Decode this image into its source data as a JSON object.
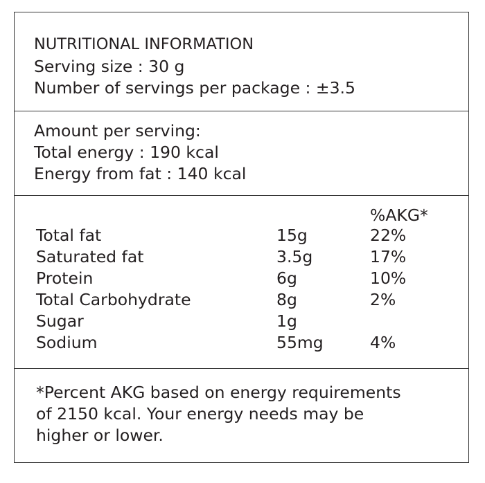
{
  "header": {
    "title": "NUTRITIONAL INFORMATION",
    "serving_size": "Serving size : 30 g",
    "servings_per_package": "Number of servings per package : ±3.5"
  },
  "energy": {
    "amount_per_serving": "Amount per serving:",
    "total_energy": "Total energy : 190 kcal",
    "energy_from_fat": "Energy from fat : 140 kcal"
  },
  "nutrients": {
    "percent_header": "%AKG*",
    "rows": [
      {
        "name": "Total fat",
        "amount": "15g",
        "percent": "22%"
      },
      {
        "name": "Saturated fat",
        "amount": "3.5g",
        "percent": "17%"
      },
      {
        "name": "Protein",
        "amount": "6g",
        "percent": "10%"
      },
      {
        "name": "Total Carbohydrate",
        "amount": "8g",
        "percent": "2%"
      },
      {
        "name": "Sugar",
        "amount": "1g",
        "percent": ""
      },
      {
        "name": "Sodium",
        "amount": "55mg",
        "percent": "4%"
      }
    ]
  },
  "footnote": {
    "line1": "*Percent AKG based on energy requirements",
    "line2": "of 2150 kcal. Your energy needs may be",
    "line3": "higher or lower."
  }
}
